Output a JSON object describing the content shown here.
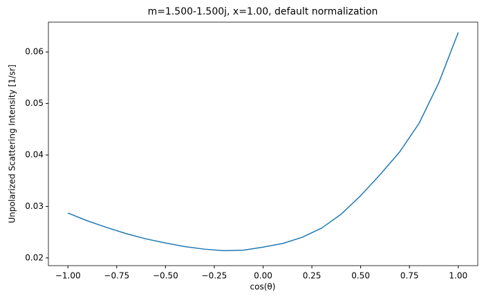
{
  "chart_data": {
    "type": "line",
    "title": "m=1.500-1.500j, x=1.00, default normalization",
    "x_label": "cos(θ)",
    "y_label": "Unpolarized Scattering Intensity [1/sr]",
    "x": [
      -1.0,
      -0.9,
      -0.8,
      -0.7,
      -0.6,
      -0.5,
      -0.4,
      -0.3,
      -0.2,
      -0.1,
      0.0,
      0.1,
      0.2,
      0.3,
      0.4,
      0.5,
      0.6,
      0.7,
      0.8,
      0.9,
      1.0
    ],
    "series": [
      {
        "color": "#1f77b4",
        "values": [
          0.02872,
          0.0272,
          0.0259,
          0.0247,
          0.0237,
          0.0229,
          0.0222,
          0.0217,
          0.0214,
          0.0215,
          0.0221,
          0.0228,
          0.024,
          0.0258,
          0.0285,
          0.0321,
          0.0362,
          0.0406,
          0.0462,
          0.054,
          0.0638
        ]
      }
    ],
    "xlim": [
      -1.1,
      1.1
    ],
    "ylim": [
      0.0185,
      0.0658
    ],
    "xticks": [
      {
        "value": -1.0,
        "label": "−1.00"
      },
      {
        "value": -0.75,
        "label": "−0.75"
      },
      {
        "value": -0.5,
        "label": "−0.50"
      },
      {
        "value": -0.25,
        "label": "−0.25"
      },
      {
        "value": 0.0,
        "label": "0.00"
      },
      {
        "value": 0.25,
        "label": "0.25"
      },
      {
        "value": 0.5,
        "label": "0.50"
      },
      {
        "value": 0.75,
        "label": "0.75"
      },
      {
        "value": 1.0,
        "label": "1.00"
      }
    ],
    "yticks": [
      0.02,
      0.03,
      0.04,
      0.05,
      0.06
    ]
  }
}
